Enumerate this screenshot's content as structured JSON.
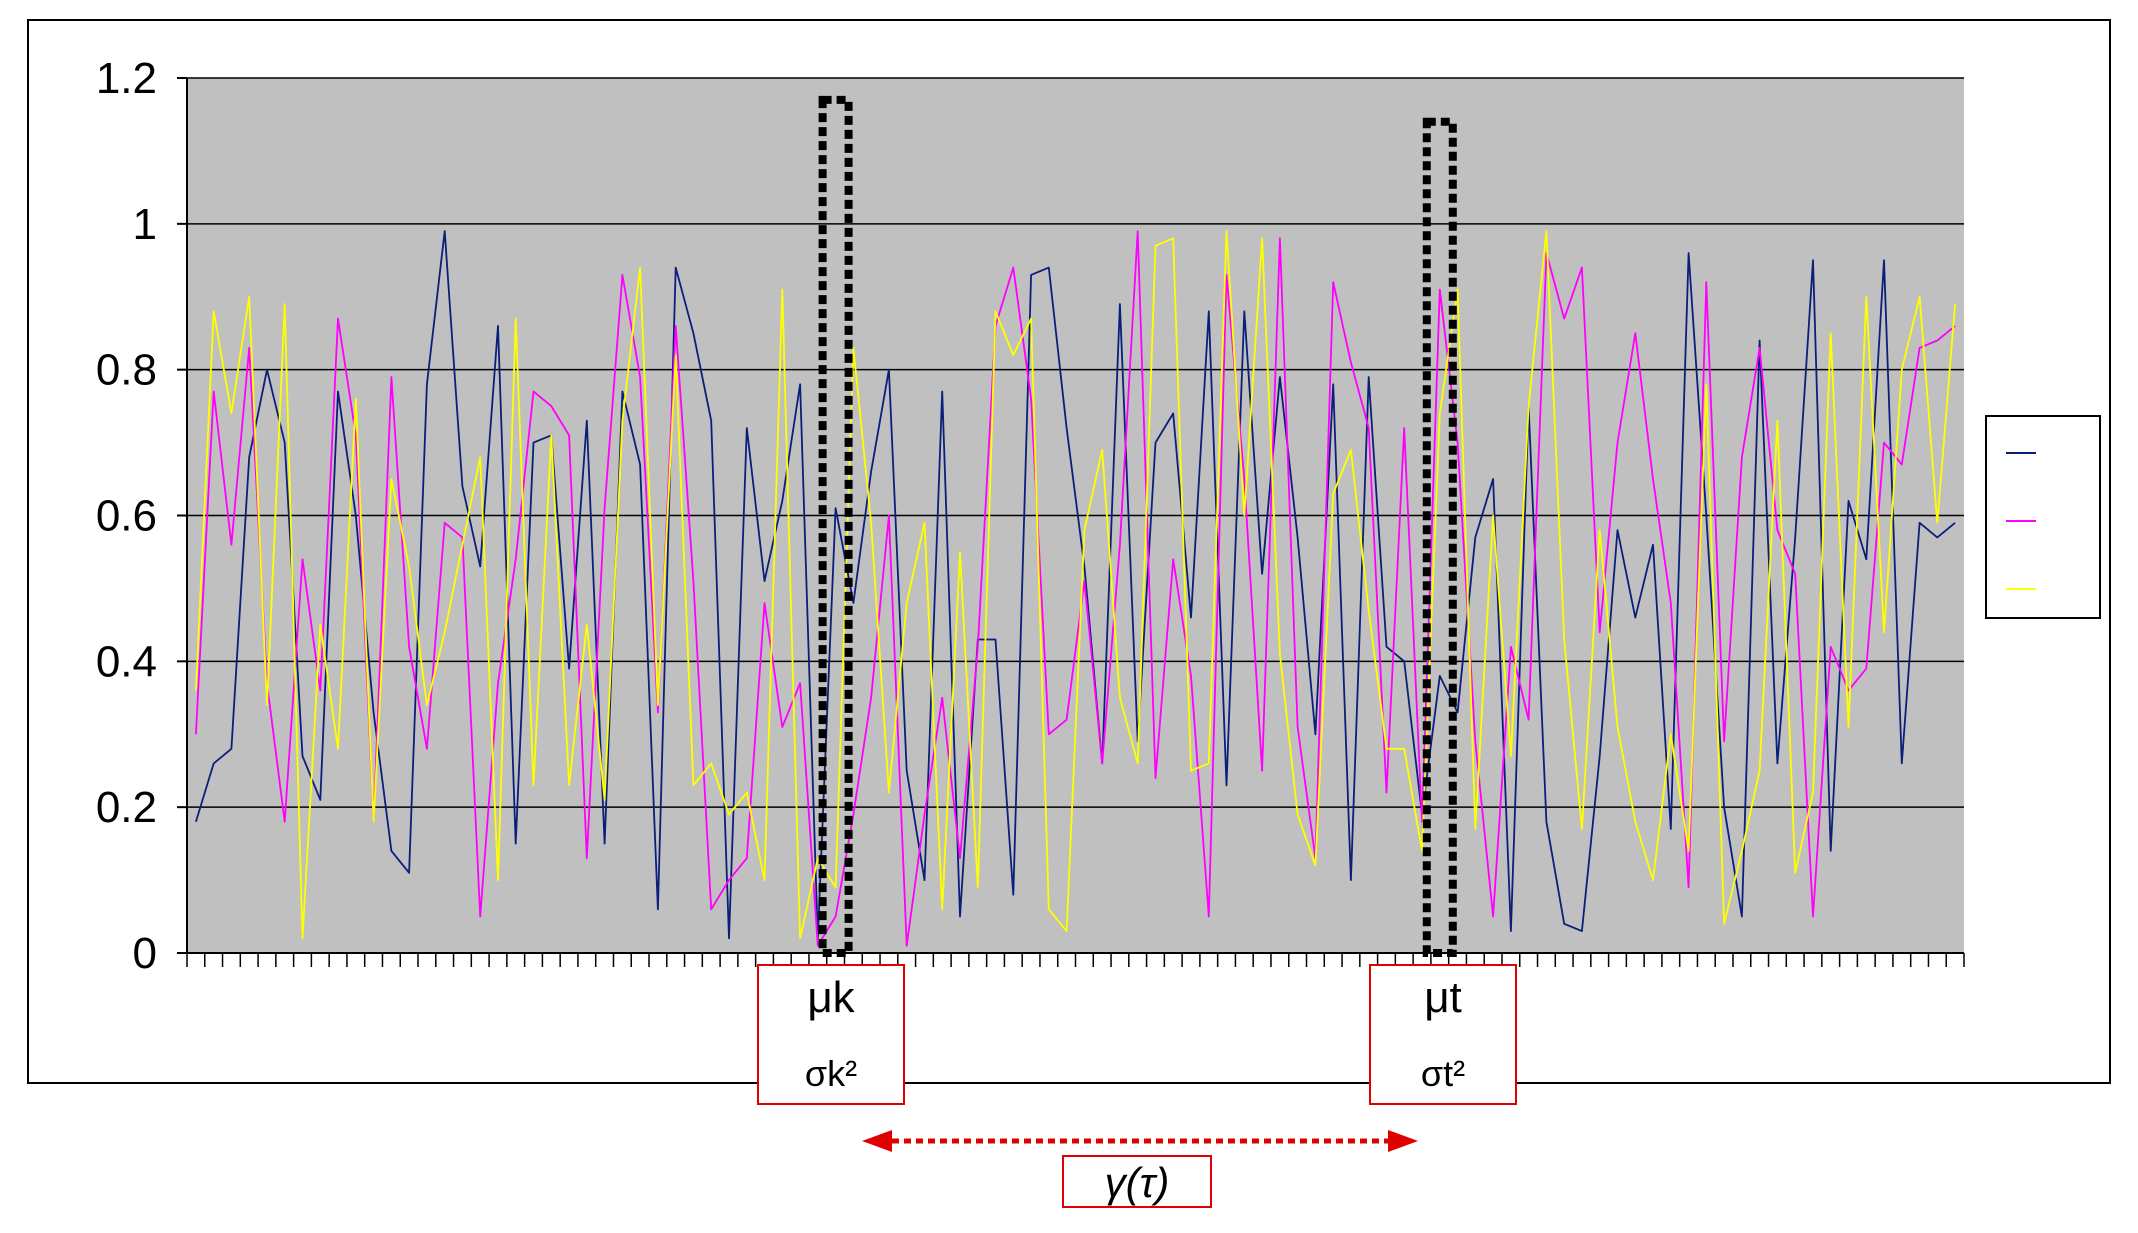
{
  "chart_data": {
    "type": "line",
    "title": "",
    "xlabel": "",
    "ylabel": "",
    "ylim": [
      0,
      1.2
    ],
    "y_ticks": [
      "0",
      "0.2",
      "0.4",
      "0.6",
      "0.8",
      "1",
      "1.2"
    ],
    "grid": true,
    "legend_position": "right",
    "x_count": 100,
    "series": [
      {
        "color": "#0b1f7a",
        "values": [
          0.18,
          0.26,
          0.28,
          0.68,
          0.8,
          0.7,
          0.27,
          0.21,
          0.77,
          0.6,
          0.33,
          0.14,
          0.11,
          0.78,
          0.99,
          0.64,
          0.53,
          0.86,
          0.15,
          0.7,
          0.71,
          0.39,
          0.73,
          0.15,
          0.77,
          0.67,
          0.06,
          0.94,
          0.85,
          0.73,
          0.02,
          0.72,
          0.51,
          0.62,
          0.78,
          0.02,
          0.61,
          0.48,
          0.66,
          0.8,
          0.25,
          0.1,
          0.77,
          0.05,
          0.43,
          0.43,
          0.08,
          0.93,
          0.94,
          0.72,
          0.53,
          0.26,
          0.89,
          0.29,
          0.7,
          0.74,
          0.46,
          0.88,
          0.23,
          0.88,
          0.52,
          0.79,
          0.57,
          0.3,
          0.78,
          0.1,
          0.79,
          0.42,
          0.4,
          0.19,
          0.38,
          0.33,
          0.57,
          0.65,
          0.03,
          0.75,
          0.18,
          0.04,
          0.03,
          0.27,
          0.58,
          0.46,
          0.56,
          0.17,
          0.96,
          0.6,
          0.2,
          0.05,
          0.84,
          0.26,
          0.57,
          0.95,
          0.14,
          0.62,
          0.54,
          0.95,
          0.26,
          0.59,
          0.57,
          0.59
        ]
      },
      {
        "color": "#ff00ff",
        "values": [
          0.3,
          0.77,
          0.56,
          0.83,
          0.37,
          0.18,
          0.54,
          0.36,
          0.87,
          0.71,
          0.18,
          0.79,
          0.42,
          0.28,
          0.59,
          0.57,
          0.05,
          0.37,
          0.54,
          0.77,
          0.75,
          0.71,
          0.13,
          0.61,
          0.93,
          0.79,
          0.33,
          0.86,
          0.51,
          0.06,
          0.1,
          0.13,
          0.48,
          0.31,
          0.37,
          0.01,
          0.05,
          0.19,
          0.35,
          0.6,
          0.01,
          0.19,
          0.35,
          0.13,
          0.42,
          0.86,
          0.94,
          0.76,
          0.3,
          0.32,
          0.51,
          0.26,
          0.56,
          0.99,
          0.24,
          0.54,
          0.38,
          0.05,
          0.93,
          0.65,
          0.25,
          0.98,
          0.31,
          0.13,
          0.92,
          0.81,
          0.72,
          0.22,
          0.72,
          0.18,
          0.91,
          0.7,
          0.29,
          0.05,
          0.42,
          0.32,
          0.96,
          0.87,
          0.94,
          0.44,
          0.7,
          0.85,
          0.65,
          0.48,
          0.09,
          0.92,
          0.29,
          0.68,
          0.83,
          0.58,
          0.52,
          0.05,
          0.42,
          0.36,
          0.39,
          0.7,
          0.67,
          0.83,
          0.84,
          0.86
        ]
      },
      {
        "color": "#ffff00",
        "values": [
          0.36,
          0.88,
          0.74,
          0.9,
          0.34,
          0.89,
          0.02,
          0.45,
          0.28,
          0.76,
          0.18,
          0.65,
          0.53,
          0.34,
          0.44,
          0.56,
          0.68,
          0.1,
          0.87,
          0.23,
          0.71,
          0.23,
          0.45,
          0.21,
          0.73,
          0.94,
          0.34,
          0.82,
          0.23,
          0.26,
          0.19,
          0.22,
          0.1,
          0.91,
          0.02,
          0.13,
          0.09,
          0.83,
          0.59,
          0.22,
          0.48,
          0.59,
          0.06,
          0.55,
          0.09,
          0.88,
          0.82,
          0.87,
          0.06,
          0.03,
          0.58,
          0.69,
          0.35,
          0.26,
          0.97,
          0.98,
          0.25,
          0.26,
          0.99,
          0.6,
          0.98,
          0.41,
          0.19,
          0.12,
          0.63,
          0.69,
          0.47,
          0.28,
          0.28,
          0.14,
          0.74,
          0.91,
          0.17,
          0.6,
          0.27,
          0.75,
          0.99,
          0.43,
          0.17,
          0.58,
          0.31,
          0.18,
          0.1,
          0.3,
          0.14,
          0.78,
          0.04,
          0.14,
          0.25,
          0.73,
          0.11,
          0.22,
          0.85,
          0.31,
          0.9,
          0.44,
          0.8,
          0.9,
          0.59,
          0.89
        ]
      }
    ]
  },
  "annotations": {
    "mu_k": "μk",
    "sigma_k": "σk²",
    "mu_t": "μt",
    "sigma_t": "σt²",
    "gamma": "γ(τ)",
    "marker_k_index": 36,
    "marker_t_index": 70
  }
}
